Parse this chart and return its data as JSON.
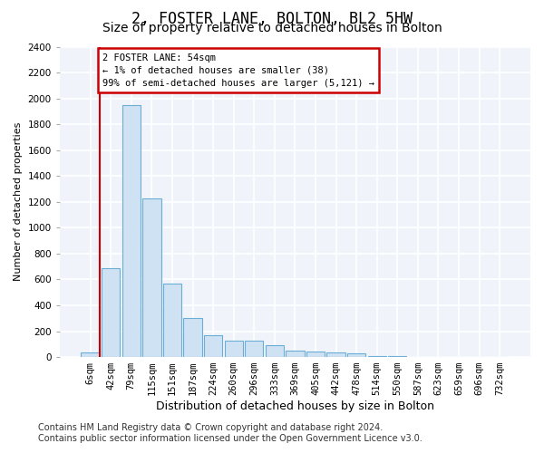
{
  "title1": "2, FOSTER LANE, BOLTON, BL2 5HW",
  "title2": "Size of property relative to detached houses in Bolton",
  "xlabel": "Distribution of detached houses by size in Bolton",
  "ylabel": "Number of detached properties",
  "bar_color": "#cfe2f3",
  "bar_edge_color": "#6aaed6",
  "categories": [
    "6sqm",
    "42sqm",
    "79sqm",
    "115sqm",
    "151sqm",
    "187sqm",
    "224sqm",
    "260sqm",
    "296sqm",
    "333sqm",
    "369sqm",
    "405sqm",
    "442sqm",
    "478sqm",
    "514sqm",
    "550sqm",
    "587sqm",
    "623sqm",
    "659sqm",
    "696sqm",
    "732sqm"
  ],
  "values": [
    38,
    690,
    1950,
    1230,
    570,
    305,
    170,
    130,
    125,
    90,
    50,
    40,
    35,
    28,
    8,
    5,
    3,
    2,
    1,
    1,
    1
  ],
  "ylim": [
    0,
    2400
  ],
  "yticks": [
    0,
    200,
    400,
    600,
    800,
    1000,
    1200,
    1400,
    1600,
    1800,
    2000,
    2200,
    2400
  ],
  "annotation_text_line1": "2 FOSTER LANE: 54sqm",
  "annotation_text_line2": "← 1% of detached houses are smaller (38)",
  "annotation_text_line3": "99% of semi-detached houses are larger (5,121) →",
  "annotation_box_color": "#ffffff",
  "annotation_box_edge_color": "#cc0000",
  "vline_color": "#cc0000",
  "footer_line1": "Contains HM Land Registry data © Crown copyright and database right 2024.",
  "footer_line2": "Contains public sector information licensed under the Open Government Licence v3.0.",
  "bg_color": "#ffffff",
  "plot_bg_color": "#f0f4fa",
  "grid_color": "#ffffff",
  "title1_fontsize": 12,
  "title2_fontsize": 10,
  "xlabel_fontsize": 9,
  "ylabel_fontsize": 8,
  "tick_fontsize": 7.5,
  "footer_fontsize": 7
}
